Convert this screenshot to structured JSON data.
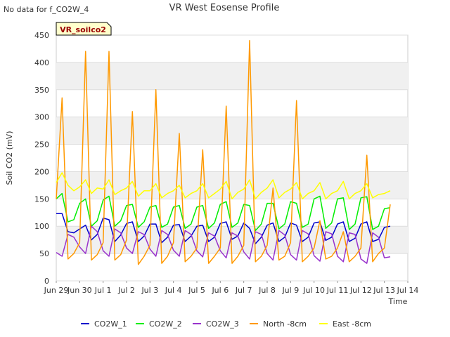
{
  "chart_data": {
    "type": "line",
    "title": "VR West Eosense Profile",
    "note": "No data for f_CO2W_4",
    "badge": "VR_soilco2",
    "xlabel": "Time",
    "ylabel": "Soil CO2 (mV)",
    "ylim": [
      0,
      450
    ],
    "xlim": [
      "2024-06-29",
      "2024-07-14"
    ],
    "yticks": [
      0,
      50,
      100,
      150,
      200,
      250,
      300,
      350,
      400,
      450
    ],
    "xticks": [
      "Jun 29",
      "Jun 30",
      "Jul 1",
      "Jul 2",
      "Jul 3",
      "Jul 4",
      "Jul 5",
      "Jul 6",
      "Jul 7",
      "Jul 8",
      "Jul 9",
      "Jul 10",
      "Jul 11",
      "Jul 12",
      "Jul 13",
      "Jul 14"
    ],
    "grid": "horizontal bands",
    "legend_position": "bottom",
    "x_dates": [
      "2024-06-29 00:00",
      "2024-06-29 06:00",
      "2024-06-29 12:00",
      "2024-06-29 18:00",
      "2024-06-30 00:00",
      "2024-06-30 06:00",
      "2024-06-30 12:00",
      "2024-06-30 18:00",
      "2024-07-01 00:00",
      "2024-07-01 06:00",
      "2024-07-01 12:00",
      "2024-07-01 18:00",
      "2024-07-02 00:00",
      "2024-07-02 06:00",
      "2024-07-02 12:00",
      "2024-07-02 18:00",
      "2024-07-03 00:00",
      "2024-07-03 06:00",
      "2024-07-03 12:00",
      "2024-07-03 18:00",
      "2024-07-04 00:00",
      "2024-07-04 06:00",
      "2024-07-04 12:00",
      "2024-07-04 18:00",
      "2024-07-05 00:00",
      "2024-07-05 06:00",
      "2024-07-05 12:00",
      "2024-07-05 18:00",
      "2024-07-06 00:00",
      "2024-07-06 06:00",
      "2024-07-06 12:00",
      "2024-07-06 18:00",
      "2024-07-07 00:00",
      "2024-07-07 06:00",
      "2024-07-07 12:00",
      "2024-07-07 18:00",
      "2024-07-08 00:00",
      "2024-07-08 06:00",
      "2024-07-08 12:00",
      "2024-07-08 18:00",
      "2024-07-09 00:00",
      "2024-07-09 06:00",
      "2024-07-09 12:00",
      "2024-07-09 18:00",
      "2024-07-10 00:00",
      "2024-07-10 06:00",
      "2024-07-10 12:00",
      "2024-07-10 18:00",
      "2024-07-11 00:00",
      "2024-07-11 06:00",
      "2024-07-11 12:00",
      "2024-07-11 18:00",
      "2024-07-12 00:00",
      "2024-07-12 06:00",
      "2024-07-12 12:00",
      "2024-07-12 18:00",
      "2024-07-13 00:00",
      "2024-07-13 06:00"
    ],
    "series": [
      {
        "name": "CO2W_1",
        "color": "#0000cc",
        "values": [
          123,
          123,
          90,
          88,
          95,
          102,
          75,
          85,
          115,
          112,
          72,
          84,
          105,
          108,
          72,
          82,
          104,
          104,
          70,
          80,
          102,
          103,
          72,
          82,
          100,
          102,
          72,
          80,
          105,
          108,
          76,
          82,
          106,
          96,
          68,
          80,
          102,
          106,
          72,
          80,
          106,
          102,
          72,
          80,
          106,
          108,
          74,
          80,
          104,
          108,
          72,
          78,
          104,
          108,
          72,
          76,
          98,
          100
        ]
      },
      {
        "name": "CO2W_2",
        "color": "#00ee00",
        "values": [
          150,
          160,
          108,
          112,
          142,
          150,
          100,
          110,
          148,
          155,
          100,
          110,
          138,
          140,
          98,
          108,
          135,
          138,
          98,
          104,
          135,
          138,
          96,
          104,
          135,
          138,
          96,
          106,
          140,
          145,
          98,
          106,
          140,
          138,
          92,
          104,
          142,
          142,
          95,
          104,
          145,
          142,
          98,
          104,
          150,
          155,
          96,
          106,
          150,
          152,
          94,
          104,
          152,
          154,
          94,
          100,
          132,
          134
        ]
      },
      {
        "name": "CO2W_3",
        "color": "#9933cc",
        "values": [
          52,
          45,
          85,
          80,
          62,
          50,
          100,
          90,
          55,
          45,
          95,
          88,
          60,
          50,
          90,
          85,
          58,
          45,
          92,
          85,
          56,
          45,
          92,
          85,
          55,
          44,
          88,
          82,
          55,
          42,
          88,
          82,
          53,
          40,
          90,
          85,
          50,
          38,
          92,
          84,
          48,
          38,
          92,
          86,
          46,
          36,
          90,
          86,
          45,
          35,
          88,
          85,
          40,
          32,
          88,
          80,
          42,
          44
        ]
      },
      {
        "name": "North -8cm",
        "color": "#ff9900",
        "values": [
          150,
          335,
          40,
          50,
          70,
          420,
          38,
          48,
          70,
          420,
          38,
          48,
          75,
          310,
          30,
          45,
          65,
          350,
          32,
          45,
          70,
          270,
          35,
          45,
          60,
          240,
          32,
          45,
          60,
          320,
          32,
          45,
          65,
          440,
          35,
          45,
          65,
          170,
          38,
          45,
          70,
          330,
          35,
          45,
          60,
          110,
          40,
          45,
          60,
          90,
          35,
          45,
          60,
          230,
          35,
          50,
          60,
          140
        ]
      },
      {
        "name": "East -8cm",
        "color": "#ffff00",
        "values": [
          180,
          198,
          175,
          165,
          172,
          185,
          160,
          170,
          168,
          185,
          158,
          165,
          170,
          182,
          155,
          165,
          165,
          178,
          152,
          160,
          165,
          175,
          152,
          160,
          165,
          178,
          152,
          160,
          168,
          182,
          150,
          162,
          168,
          185,
          150,
          162,
          170,
          185,
          152,
          162,
          168,
          180,
          150,
          160,
          165,
          180,
          150,
          160,
          165,
          182,
          150,
          160,
          165,
          178,
          152,
          158,
          160,
          165
        ]
      }
    ]
  }
}
